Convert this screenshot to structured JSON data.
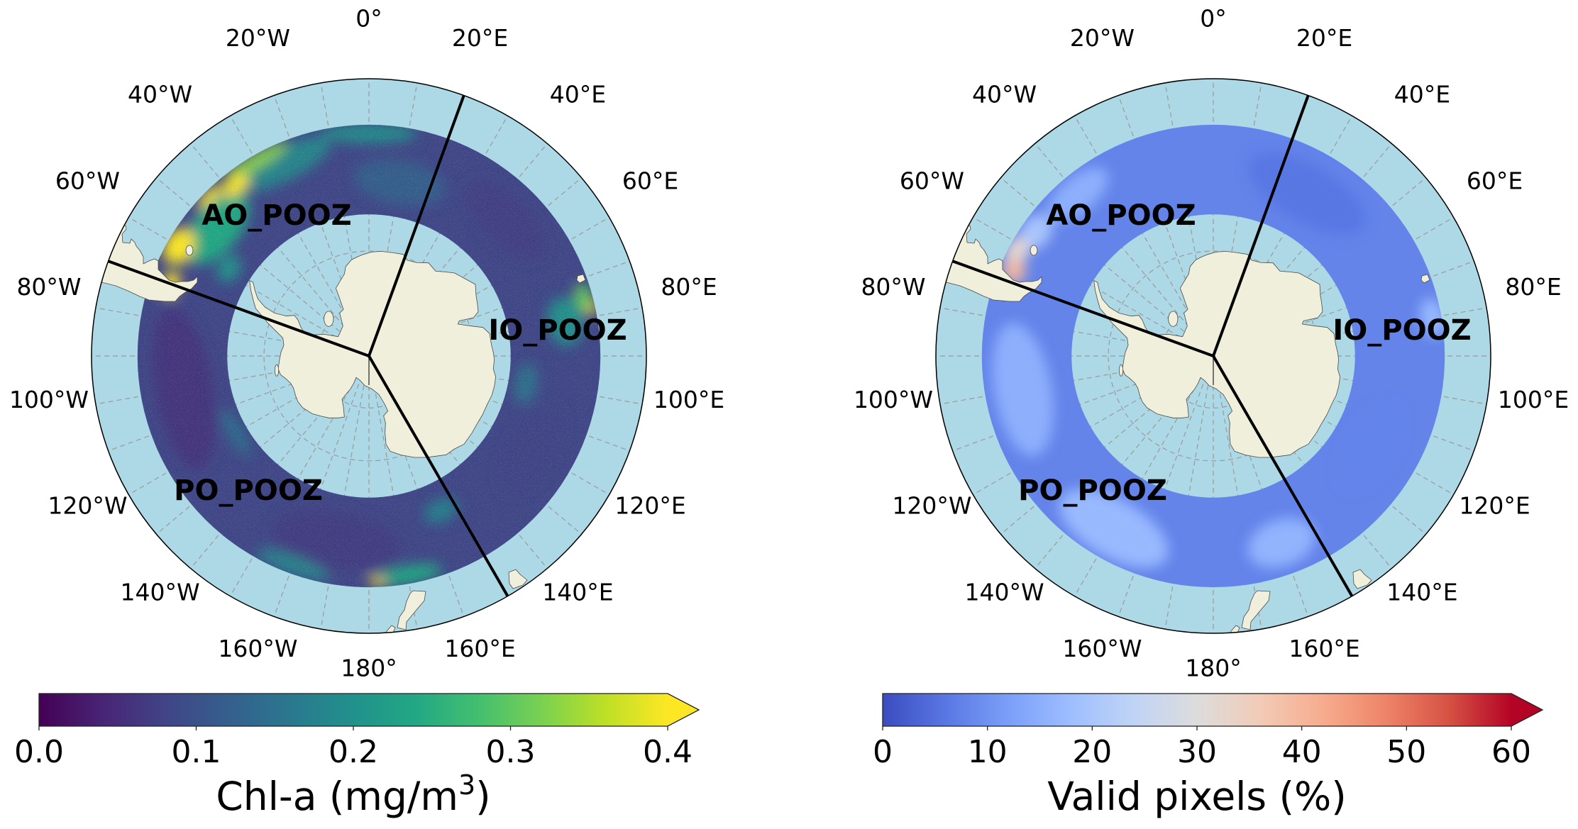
{
  "figure": {
    "map_extent_lat": -40,
    "ring_lat": [
      -63.2,
      -47.5
    ],
    "sector_boundaries_lon": [
      20,
      150,
      -70
    ],
    "colors": {
      "ocean": "#add8e6",
      "land": "#efefdb",
      "boundary": "#000000",
      "gridline": "#9a9a9a"
    },
    "graticule": {
      "lat_lines": [
        -80,
        -70,
        -60,
        -50
      ],
      "lon_step": 10,
      "lon_labels": [
        {
          "lon": 0,
          "text": "0°"
        },
        {
          "lon": -20,
          "text": "20°W"
        },
        {
          "lon": 20,
          "text": "20°E"
        },
        {
          "lon": -40,
          "text": "40°W"
        },
        {
          "lon": 40,
          "text": "40°E"
        },
        {
          "lon": -60,
          "text": "60°W"
        },
        {
          "lon": 60,
          "text": "60°E"
        },
        {
          "lon": -80,
          "text": "80°W"
        },
        {
          "lon": 80,
          "text": "80°E"
        },
        {
          "lon": -100,
          "text": "100°W"
        },
        {
          "lon": 100,
          "text": "100°E"
        },
        {
          "lon": -120,
          "text": "120°W"
        },
        {
          "lon": 120,
          "text": "120°E"
        },
        {
          "lon": -140,
          "text": "140°W"
        },
        {
          "lon": 140,
          "text": "140°E"
        },
        {
          "lon": -160,
          "text": "160°W"
        },
        {
          "lon": 160,
          "text": "160°E"
        },
        {
          "lon": 180,
          "text": "180°"
        }
      ]
    }
  },
  "left_map": {
    "region_labels": {
      "ao": "AO_POOZ",
      "io": "IO_POOZ",
      "po": "PO_POOZ"
    },
    "colorbar": {
      "label_main": "Chl-a (mg/m",
      "label_sup": "3",
      "label_end": ")",
      "colormap": "viridis",
      "min": 0.0,
      "max": 0.4,
      "extend": "max",
      "stops": [
        "#440154",
        "#482475",
        "#414487",
        "#355f8d",
        "#2a788e",
        "#21918c",
        "#22a884",
        "#44bf70",
        "#7ad151",
        "#bddf26",
        "#fde725"
      ],
      "ticks": [
        {
          "value": 0.0,
          "label": "0.0"
        },
        {
          "value": 0.1,
          "label": "0.1"
        },
        {
          "value": 0.2,
          "label": "0.2"
        },
        {
          "value": 0.3,
          "label": "0.3"
        },
        {
          "value": 0.4,
          "label": "0.4"
        }
      ]
    },
    "field": {
      "base": 0.085,
      "patches": [
        {
          "lon": -100,
          "lat": -55,
          "value": 0.06,
          "dlon": 50,
          "dlat": 10
        },
        {
          "lon": -170,
          "lat": -55,
          "value": 0.07,
          "dlon": 40,
          "dlat": 10
        },
        {
          "lon": 45,
          "lat": -54,
          "value": 0.075,
          "dlon": 30,
          "dlat": 8
        },
        {
          "lon": 120,
          "lat": -55,
          "value": 0.08,
          "dlon": 30,
          "dlat": 8
        },
        {
          "lon": 10,
          "lat": -57,
          "value": 0.12,
          "dlon": 30,
          "dlat": 8
        },
        {
          "lon": -25,
          "lat": -51,
          "value": 0.18,
          "dlon": 30,
          "dlat": 6
        },
        {
          "lon": 0,
          "lat": -49,
          "value": 0.2,
          "dlon": 25,
          "dlat": 3
        },
        {
          "lon": -50,
          "lat": -53,
          "value": 0.24,
          "dlon": 25,
          "dlat": 8
        },
        {
          "lon": -58,
          "lat": -59,
          "value": 0.2,
          "dlon": 10,
          "dlat": 4
        },
        {
          "lon": -30,
          "lat": -48.5,
          "value": 0.33,
          "dlon": 18,
          "dlat": 2.5
        },
        {
          "lon": -38,
          "lat": -50,
          "value": 0.5,
          "dlon": 8,
          "dlat": 3
        },
        {
          "lon": -45,
          "lat": -48.5,
          "value": 0.42,
          "dlon": 8,
          "dlat": 2
        },
        {
          "lon": -60,
          "lat": -49.5,
          "value": 0.55,
          "dlon": 10,
          "dlat": 5
        },
        {
          "lon": -70,
          "lat": -51,
          "value": 0.5,
          "dlon": 7,
          "dlat": 3
        },
        {
          "lon": 80,
          "lat": -53,
          "value": 0.2,
          "dlon": 14,
          "dlat": 6
        },
        {
          "lon": 75,
          "lat": -49,
          "value": 0.3,
          "dlon": 8,
          "dlat": 3
        },
        {
          "lon": 78,
          "lat": -48,
          "value": 0.5,
          "dlon": 3,
          "dlat": 1.5
        },
        {
          "lon": 100,
          "lat": -60,
          "value": 0.15,
          "dlon": 15,
          "dlat": 4
        },
        {
          "lon": 170,
          "lat": -49,
          "value": 0.24,
          "dlon": 18,
          "dlat": 3
        },
        {
          "lon": 178,
          "lat": -48.5,
          "value": 0.42,
          "dlon": 4,
          "dlat": 1.5
        },
        {
          "lon": -160,
          "lat": -49,
          "value": 0.18,
          "dlon": 20,
          "dlat": 3
        },
        {
          "lon": -120,
          "lat": -61,
          "value": 0.14,
          "dlon": 20,
          "dlat": 3
        },
        {
          "lon": 155,
          "lat": -58,
          "value": 0.17,
          "dlon": 12,
          "dlat": 4
        }
      ]
    }
  },
  "right_map": {
    "region_labels": {
      "ao": "AO_POOZ",
      "io": "IO_POOZ",
      "po": "PO_POOZ"
    },
    "colorbar": {
      "label": "Valid pixels (%)",
      "colormap": "coolwarm",
      "min": 0,
      "max": 60,
      "extend": "max",
      "stops": [
        "#3b4cc0",
        "#5977e3",
        "#7b9ff9",
        "#9ebeff",
        "#c0d4f5",
        "#dddcdc",
        "#f2cbb7",
        "#f7ac8e",
        "#ee8468",
        "#d65244",
        "#b40426"
      ],
      "ticks": [
        {
          "value": 0,
          "label": "0"
        },
        {
          "value": 10,
          "label": "10"
        },
        {
          "value": 20,
          "label": "20"
        },
        {
          "value": 30,
          "label": "30"
        },
        {
          "value": 40,
          "label": "40"
        },
        {
          "value": 50,
          "label": "50"
        },
        {
          "value": 60,
          "label": "60"
        }
      ]
    },
    "field": {
      "base": 8,
      "patches": [
        {
          "lon": 30,
          "lat": -55,
          "value": 6,
          "dlon": 40,
          "dlat": 10
        },
        {
          "lon": 120,
          "lat": -56,
          "value": 8,
          "dlon": 30,
          "dlat": 8
        },
        {
          "lon": -100,
          "lat": -54,
          "value": 15,
          "dlon": 40,
          "dlat": 10
        },
        {
          "lon": -150,
          "lat": -53,
          "value": 17,
          "dlon": 35,
          "dlat": 10
        },
        {
          "lon": 160,
          "lat": -53,
          "value": 16,
          "dlon": 20,
          "dlat": 8
        },
        {
          "lon": -40,
          "lat": -51,
          "value": 15,
          "dlon": 20,
          "dlat": 6
        },
        {
          "lon": 80,
          "lat": -49,
          "value": 17,
          "dlon": 10,
          "dlat": 4
        },
        {
          "lon": -55,
          "lat": -50,
          "value": 20,
          "dlon": 10,
          "dlat": 5
        },
        {
          "lon": -62,
          "lat": -49,
          "value": 32,
          "dlon": 8,
          "dlat": 4
        },
        {
          "lon": -67,
          "lat": -50,
          "value": 40,
          "dlon": 6,
          "dlat": 4
        }
      ]
    }
  }
}
